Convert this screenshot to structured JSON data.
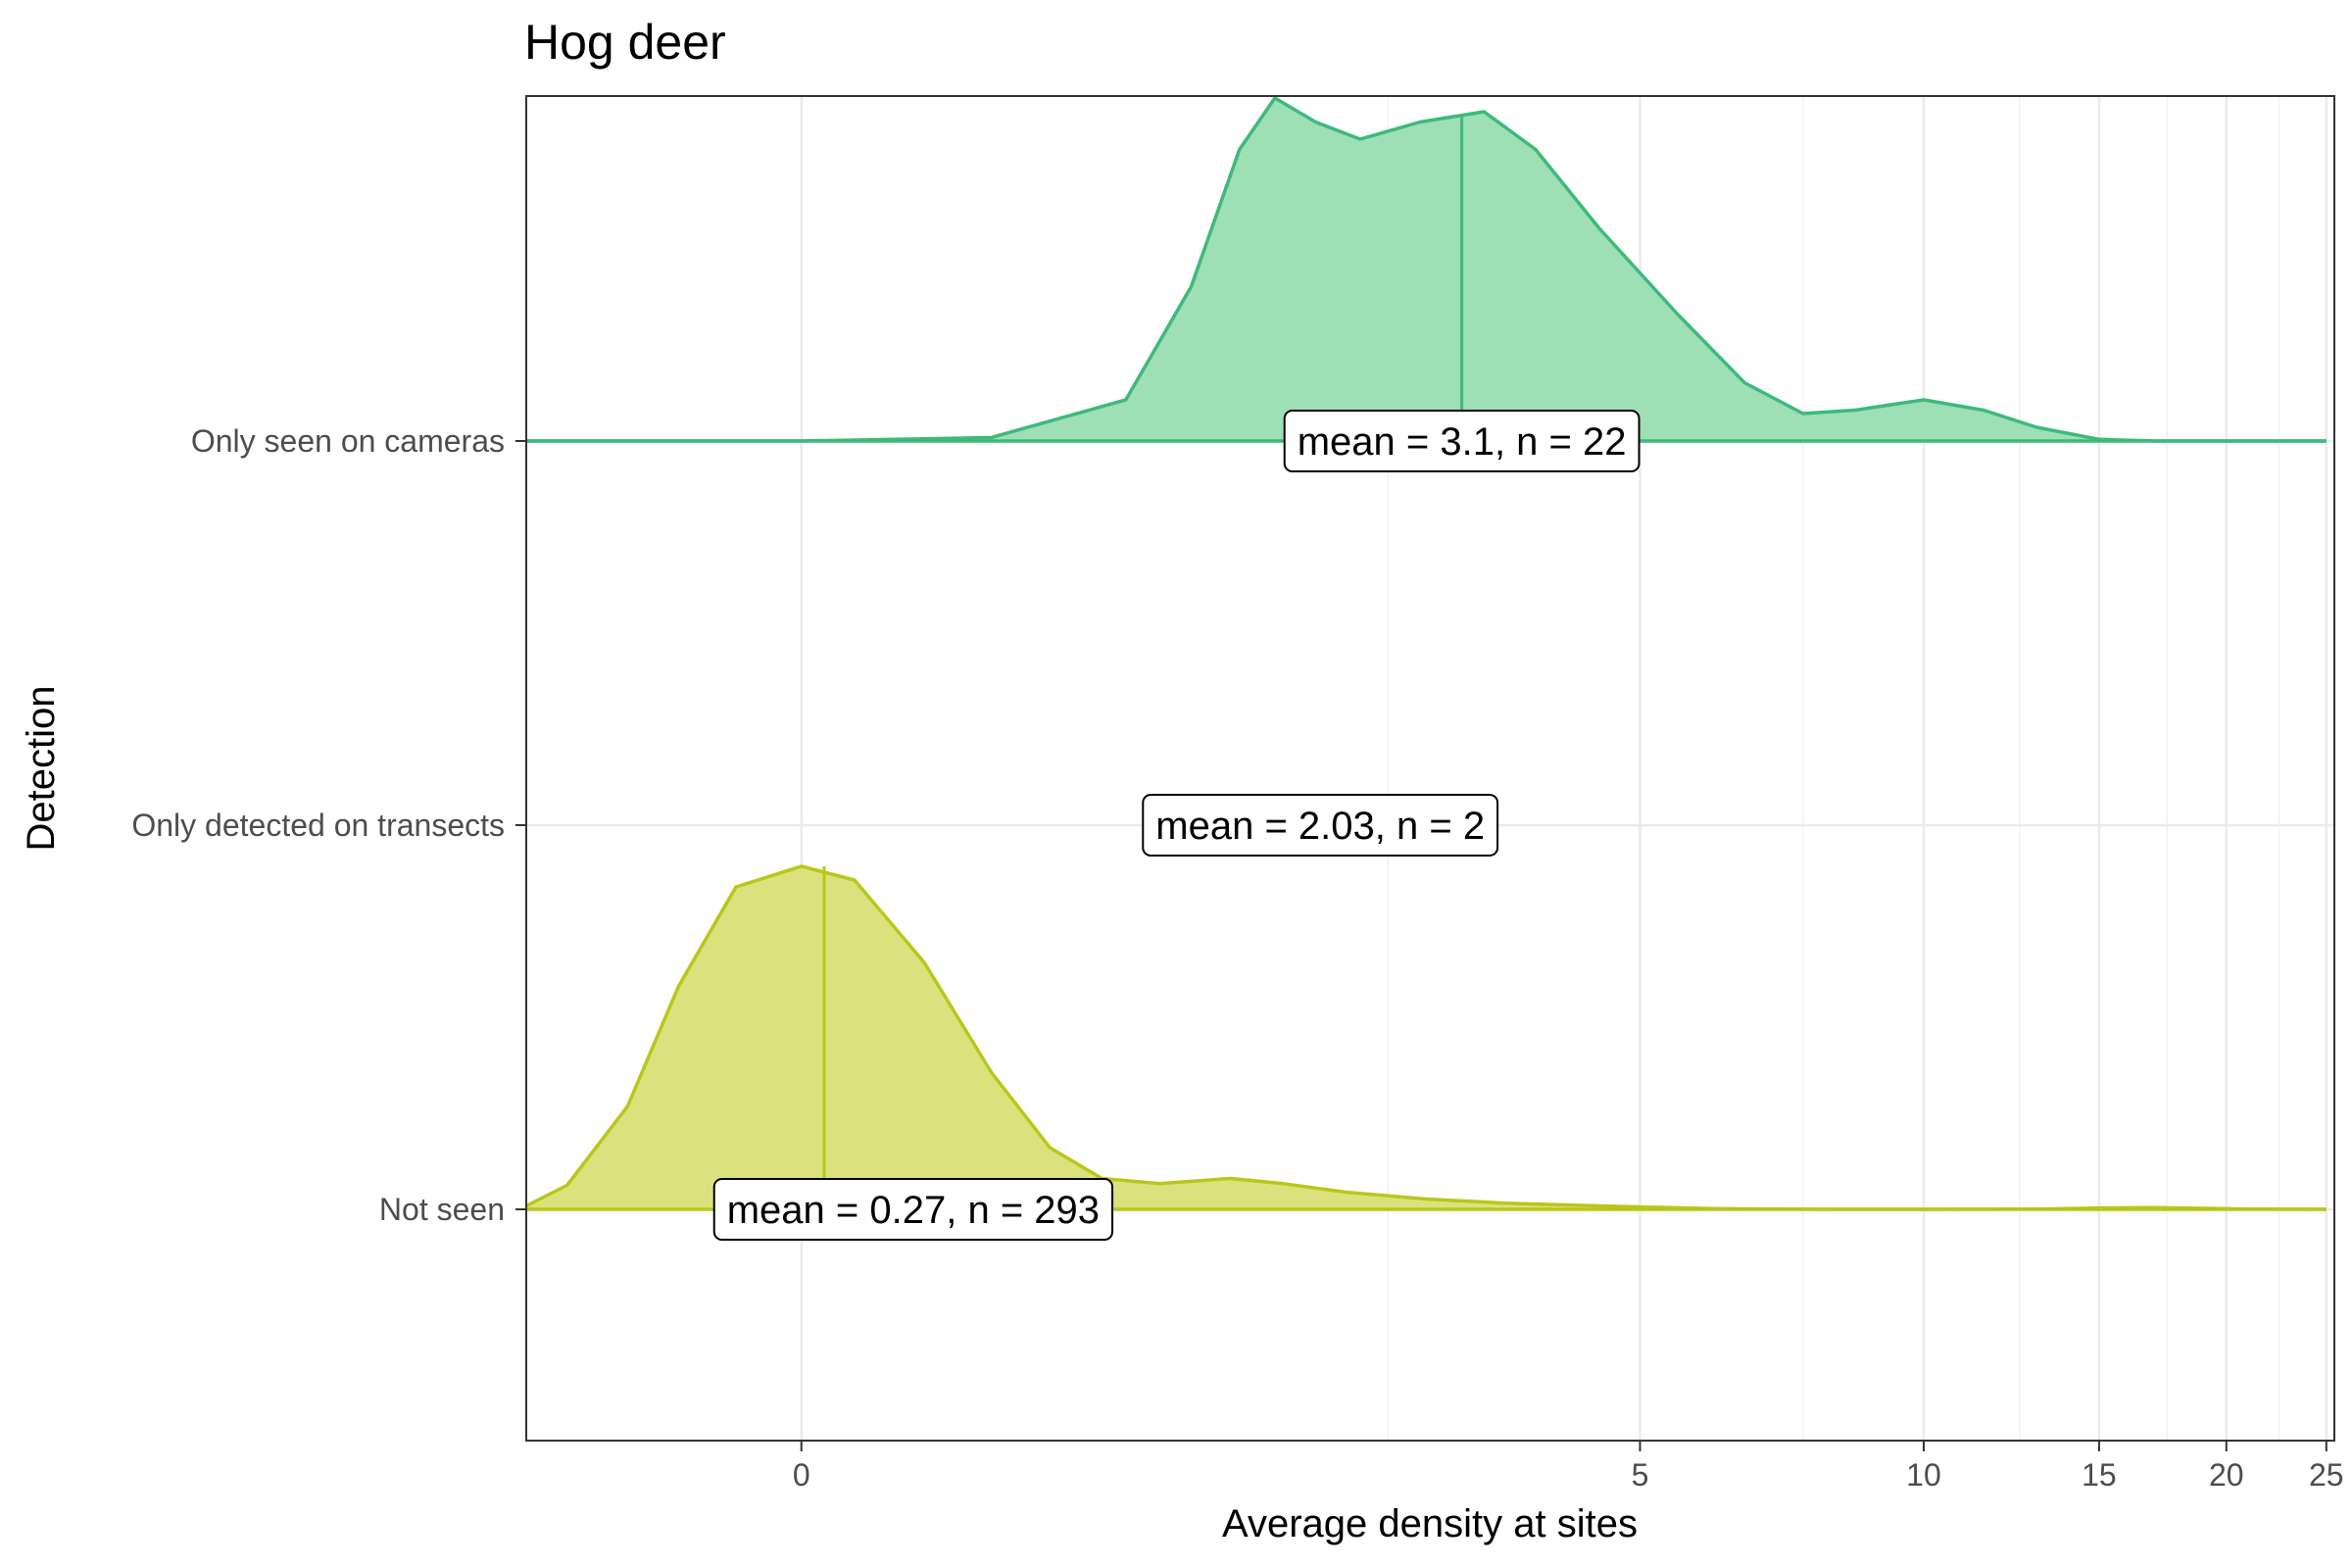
{
  "chart_data": {
    "type": "ridgeline",
    "title": "Hog deer",
    "xlabel": "Average density at sites",
    "ylabel": "Detection",
    "x_scale": "pseudo-log",
    "x_ticks": [
      0,
      5,
      10,
      15,
      20,
      25
    ],
    "x_tick_labels": [
      "0",
      "5",
      "10",
      "15",
      "20",
      "25"
    ],
    "grid": true,
    "categories": [
      "Not seen",
      "Only detected on transects",
      "Only seen on cameras"
    ],
    "series": [
      {
        "category": "Only seen on cameras",
        "color": "#3dba7a",
        "fill": "#9edfb6",
        "mean": 3.1,
        "n": 22,
        "label": "mean = 3.1, n = 22",
        "density": [
          [
            -0.8,
            0
          ],
          [
            0,
            0
          ],
          [
            0.5,
            0.01
          ],
          [
            1.0,
            0.12
          ],
          [
            1.3,
            0.45
          ],
          [
            1.55,
            0.85
          ],
          [
            1.75,
            1.0
          ],
          [
            2.0,
            0.93
          ],
          [
            2.3,
            0.88
          ],
          [
            2.75,
            0.93
          ],
          [
            3.3,
            0.96
          ],
          [
            3.8,
            0.85
          ],
          [
            4.5,
            0.62
          ],
          [
            5.5,
            0.37
          ],
          [
            6.5,
            0.17
          ],
          [
            7.5,
            0.08
          ],
          [
            8.5,
            0.09
          ],
          [
            10.0,
            0.12
          ],
          [
            11.5,
            0.09
          ],
          [
            13.0,
            0.04
          ],
          [
            15.0,
            0.005
          ],
          [
            17.0,
            0
          ],
          [
            25.0,
            0
          ]
        ]
      },
      {
        "category": "Only detected on transects",
        "color": "#b8c71a",
        "fill": "#dbe27d",
        "mean": 2.03,
        "n": 2,
        "label": "mean = 2.03, n = 2",
        "density": []
      },
      {
        "category": "Not seen",
        "color": "#b8c71a",
        "fill": "#dbe27d",
        "mean": 0.27,
        "n": 293,
        "label": "mean = 0.27, n = 293",
        "density": [
          [
            -0.8,
            0.01
          ],
          [
            -0.65,
            0.07
          ],
          [
            -0.45,
            0.3
          ],
          [
            -0.3,
            0.65
          ],
          [
            -0.15,
            0.94
          ],
          [
            0,
            1.0
          ],
          [
            0.12,
            0.96
          ],
          [
            0.3,
            0.72
          ],
          [
            0.5,
            0.4
          ],
          [
            0.7,
            0.18
          ],
          [
            0.9,
            0.09
          ],
          [
            1.15,
            0.075
          ],
          [
            1.5,
            0.09
          ],
          [
            1.8,
            0.075
          ],
          [
            2.2,
            0.05
          ],
          [
            2.8,
            0.03
          ],
          [
            3.5,
            0.018
          ],
          [
            4.5,
            0.01
          ],
          [
            6.0,
            0.002
          ],
          [
            8.0,
            0
          ],
          [
            10.0,
            0
          ],
          [
            13.0,
            0.001
          ],
          [
            15.0,
            0.004
          ],
          [
            17.0,
            0.005
          ],
          [
            19.0,
            0.003
          ],
          [
            21.0,
            0.001
          ],
          [
            25.0,
            0
          ]
        ]
      }
    ]
  }
}
